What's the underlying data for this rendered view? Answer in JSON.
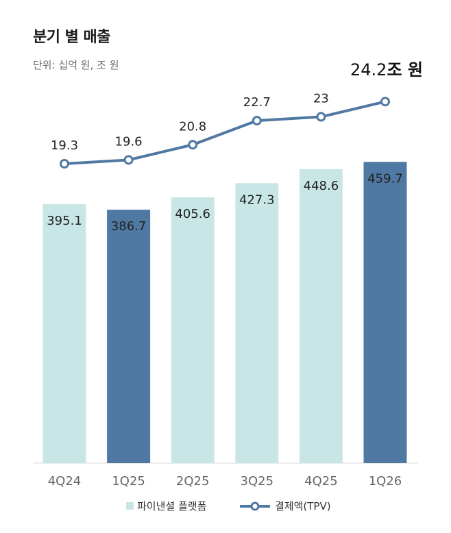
{
  "title": "분기 별 매출",
  "unit_note": "단위: 십억 원, 조 원",
  "colors": {
    "bar_light": "#c9e6e6",
    "bar_dark": "#4f78a3",
    "line": "#4f78a3",
    "axis_text": "#666666"
  },
  "chart_data": {
    "type": "bar",
    "categories": [
      "4Q24",
      "1Q25",
      "2Q25",
      "3Q25",
      "4Q25",
      "1Q26"
    ],
    "series": [
      {
        "name": "파이낸셜 플랫폼",
        "type": "bar",
        "values": [
          395.1,
          386.7,
          405.6,
          427.3,
          448.6,
          459.7
        ],
        "highlight": [
          false,
          true,
          false,
          false,
          false,
          true
        ]
      },
      {
        "name": "결제액(TPV)",
        "type": "line",
        "values": [
          19.3,
          19.6,
          20.8,
          22.7,
          23.0,
          24.2
        ]
      }
    ],
    "last_point_suffix": "조 원",
    "legend": [
      "파이낸셜 플랫폼",
      "결제액(TPV)"
    ],
    "legend_position": "bottom",
    "grid": false
  }
}
